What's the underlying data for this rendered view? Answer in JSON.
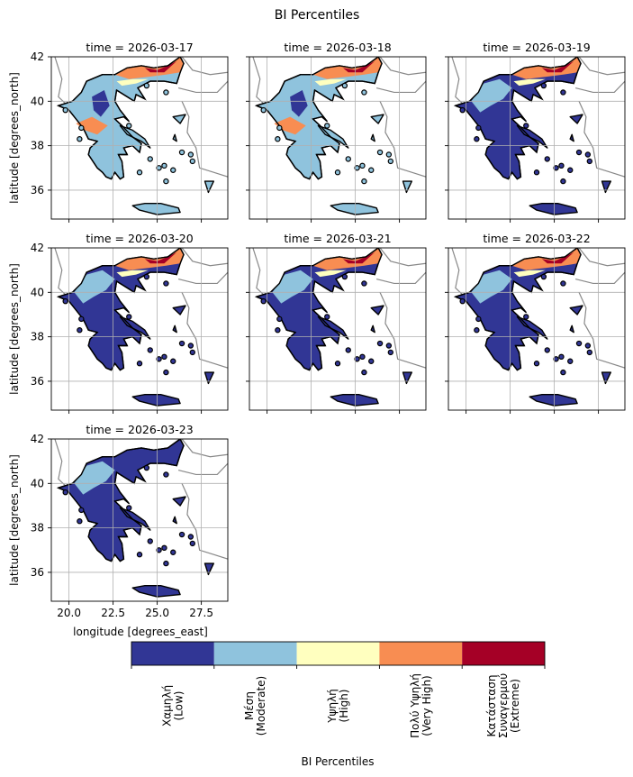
{
  "figure": {
    "title": "BI Percentiles"
  },
  "chart_data": {
    "type": "heatmap",
    "title": "BI Percentiles",
    "xlabel": "longitude [degrees_east]",
    "ylabel": "latitude [degrees_north]",
    "xlim": [
      19.0,
      29.0
    ],
    "ylim": [
      34.7,
      42.0
    ],
    "xticks": [
      "20.0",
      "22.5",
      "25.0",
      "27.5"
    ],
    "yticks": [
      "36",
      "38",
      "40",
      "42"
    ],
    "grid": true,
    "panels": [
      {
        "title": "time = 2026-03-17",
        "dominant": "Moderate"
      },
      {
        "title": "time = 2026-03-18",
        "dominant": "Moderate"
      },
      {
        "title": "time = 2026-03-19",
        "dominant": "Low"
      },
      {
        "title": "time = 2026-03-20",
        "dominant": "Low"
      },
      {
        "title": "time = 2026-03-21",
        "dominant": "Low"
      },
      {
        "title": "time = 2026-03-22",
        "dominant": "Low"
      },
      {
        "title": "time = 2026-03-23",
        "dominant": "Low"
      }
    ],
    "colorbar": {
      "label": "BI Percentiles",
      "classes": [
        {
          "line1": "Χαμηλή",
          "line2": "(Low)",
          "color": "#313695"
        },
        {
          "line1": "Μέση",
          "line2": "(Moderate)",
          "color": "#8fc3dd"
        },
        {
          "line1": "Υψηλή",
          "line2": "(High)",
          "color": "#ffffbf"
        },
        {
          "line1": "Πολύ Υψηλή",
          "line2": "(Very High)",
          "color": "#f88d52"
        },
        {
          "line1": "Κατάσταση",
          "line2": "Συναγερμού",
          "line3": "(Extreme)",
          "color": "#a50026"
        }
      ]
    }
  }
}
